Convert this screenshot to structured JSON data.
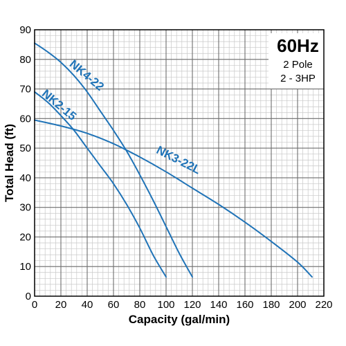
{
  "chart_data": {
    "type": "line",
    "title": "",
    "xlabel": "Capacity (gal/min)",
    "ylabel": "Total Head (ft)",
    "xlim": [
      0,
      220
    ],
    "ylim": [
      0,
      90
    ],
    "x_ticks": [
      "0",
      "20",
      "40",
      "60",
      "80",
      "100",
      "120",
      "140",
      "160",
      "180",
      "200",
      "220"
    ],
    "y_ticks": [
      "0",
      "10",
      "20",
      "30",
      "40",
      "50",
      "60",
      "70",
      "80",
      "90"
    ],
    "grid": true,
    "minor_grid_step_x": 4,
    "minor_grid_step_y": 2,
    "line_color": "#1f73b7",
    "series": [
      {
        "name": "NK4-22",
        "points": [
          [
            0,
            85.5
          ],
          [
            10,
            82.5
          ],
          [
            20,
            79
          ],
          [
            30,
            74.5
          ],
          [
            40,
            69
          ],
          [
            50,
            62.5
          ],
          [
            60,
            56
          ],
          [
            70,
            49
          ],
          [
            80,
            41
          ],
          [
            90,
            32.5
          ],
          [
            100,
            23.5
          ],
          [
            110,
            14.5
          ],
          [
            120,
            6.5
          ]
        ]
      },
      {
        "name": "NK2-15",
        "points": [
          [
            0,
            69
          ],
          [
            10,
            65.5
          ],
          [
            20,
            61
          ],
          [
            30,
            56
          ],
          [
            40,
            50
          ],
          [
            50,
            44
          ],
          [
            60,
            38
          ],
          [
            70,
            31
          ],
          [
            80,
            23
          ],
          [
            90,
            14
          ],
          [
            100,
            6.5
          ]
        ]
      },
      {
        "name": "NK3-22L",
        "points": [
          [
            0,
            59.5
          ],
          [
            20,
            57.5
          ],
          [
            40,
            55
          ],
          [
            60,
            51.5
          ],
          [
            80,
            47
          ],
          [
            100,
            42
          ],
          [
            120,
            36.5
          ],
          [
            140,
            31
          ],
          [
            160,
            25
          ],
          [
            180,
            18.5
          ],
          [
            200,
            11.5
          ],
          [
            211,
            6.5
          ]
        ]
      }
    ],
    "annotations": {
      "title": "60Hz",
      "line1": "2 Pole",
      "line2": "2 - 3HP"
    }
  }
}
